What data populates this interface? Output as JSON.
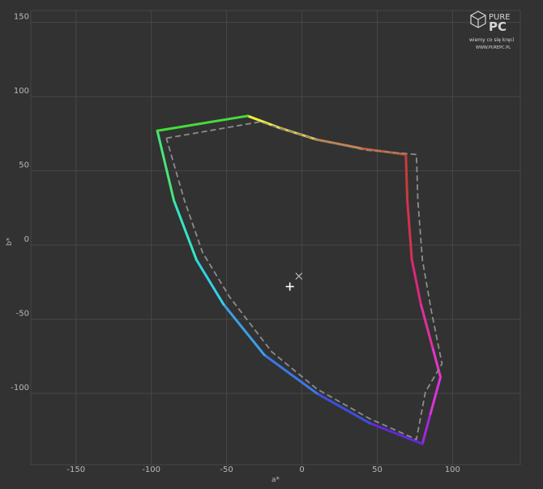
{
  "chart_data": {
    "type": "line",
    "title": "",
    "xlabel": "a*",
    "ylabel": "b*",
    "xlim": [
      -180,
      145
    ],
    "ylim": [
      -148,
      158
    ],
    "grid": true,
    "x_ticks": [
      -150,
      -100,
      -50,
      0,
      50,
      100
    ],
    "y_ticks": [
      150,
      100,
      50,
      0,
      -50,
      -100
    ],
    "series": [
      {
        "style": "solid-spectrum",
        "points": [
          {
            "x": -36,
            "y": 87,
            "color": "#f0f03c"
          },
          {
            "x": -15,
            "y": 79,
            "color": "#e6c846"
          },
          {
            "x": 10,
            "y": 71,
            "color": "#d4843c"
          },
          {
            "x": 40,
            "y": 65,
            "color": "#c85a30"
          },
          {
            "x": 69,
            "y": 61,
            "color": "#c83c3c"
          },
          {
            "x": 70,
            "y": 30,
            "color": "#d23250"
          },
          {
            "x": 73,
            "y": -10,
            "color": "#dc2878"
          },
          {
            "x": 79,
            "y": -40,
            "color": "#e0309c"
          },
          {
            "x": 87,
            "y": -70,
            "color": "#e634c8"
          },
          {
            "x": 92,
            "y": -89,
            "color": "#dc32dc"
          },
          {
            "x": 85,
            "y": -115,
            "color": "#a028dc"
          },
          {
            "x": 80,
            "y": -134,
            "color": "#6428dc"
          },
          {
            "x": 45,
            "y": -120,
            "color": "#3c50dc"
          },
          {
            "x": 10,
            "y": -100,
            "color": "#3c78e6"
          },
          {
            "x": -25,
            "y": -74,
            "color": "#3ca0e6"
          },
          {
            "x": -52,
            "y": -40,
            "color": "#32d2e6"
          },
          {
            "x": -70,
            "y": -10,
            "color": "#32e6c8"
          },
          {
            "x": -85,
            "y": 30,
            "color": "#46e678"
          },
          {
            "x": -96,
            "y": 77,
            "color": "#46dc3c"
          },
          {
            "x": -36,
            "y": 87,
            "color": "#f0f03c"
          }
        ]
      },
      {
        "style": "dashed-gray",
        "points": [
          {
            "x": -90,
            "y": 72
          },
          {
            "x": -28,
            "y": 83
          },
          {
            "x": 10,
            "y": 71
          },
          {
            "x": 42,
            "y": 64
          },
          {
            "x": 76,
            "y": 61
          },
          {
            "x": 77,
            "y": 30
          },
          {
            "x": 80,
            "y": -10
          },
          {
            "x": 86,
            "y": -45
          },
          {
            "x": 93,
            "y": -80
          },
          {
            "x": 82,
            "y": -99
          },
          {
            "x": 76,
            "y": -131
          },
          {
            "x": 45,
            "y": -117
          },
          {
            "x": 10,
            "y": -97
          },
          {
            "x": -20,
            "y": -72
          },
          {
            "x": -48,
            "y": -35
          },
          {
            "x": -66,
            "y": -5
          },
          {
            "x": -78,
            "y": 30
          },
          {
            "x": -90,
            "y": 72
          }
        ]
      }
    ],
    "markers": [
      {
        "name": "white-point-cross",
        "shape": "plus",
        "x": -8,
        "y": -28,
        "color": "#ffffff"
      },
      {
        "name": "reference-white-x",
        "shape": "x",
        "x": -2,
        "y": -21,
        "color": "#b4b4b4"
      }
    ],
    "legend": "none"
  },
  "watermark": {
    "brand_top": "PURE",
    "brand_bottom": "PC",
    "slogan": "wiemy co się kręci",
    "url": "WWW.PUREPC.PL"
  }
}
